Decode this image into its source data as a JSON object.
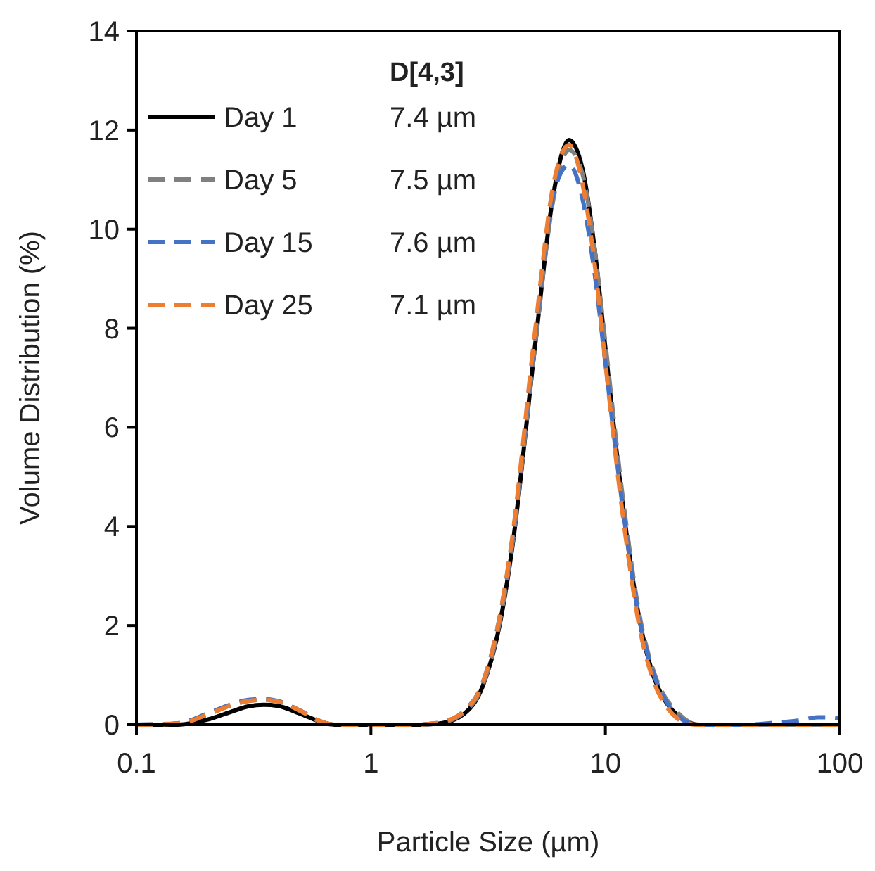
{
  "chart_data": {
    "type": "line",
    "xlabel": "Particle Size (µm)",
    "ylabel": "Volume Distribution (%)",
    "log": "x",
    "xlim": [
      0.1,
      100
    ],
    "xticks": [
      0.1,
      1,
      10,
      100
    ],
    "ylim": [
      0,
      14
    ],
    "yticks": [
      0,
      2,
      4,
      6,
      8,
      10,
      12,
      14
    ],
    "grid": false,
    "legend": "top left",
    "marker": "none",
    "x": [
      0.1,
      0.15,
      0.2,
      0.25,
      0.3,
      0.35,
      0.4,
      0.5,
      0.6,
      0.7,
      0.8,
      1,
      1.3,
      1.6,
      1.8,
      2,
      2.5,
      3,
      3.5,
      4,
      5,
      6,
      7,
      8,
      9,
      10,
      12,
      14,
      16,
      18,
      20,
      22,
      25,
      30,
      40,
      50,
      60,
      70,
      80,
      90,
      100
    ],
    "annotations": [
      "D[4,3]",
      "7.4 µm",
      "7.5 µm",
      "7.6 µm",
      "7.1 µm"
    ],
    "series": [
      {
        "name": "Day 1",
        "color": "#000000",
        "line_style": "solid",
        "values": [
          0,
          0,
          0.1,
          0.25,
          0.37,
          0.4,
          0.38,
          0.22,
          0.07,
          0,
          0,
          0,
          0,
          0,
          0.01,
          0.03,
          0.22,
          0.78,
          1.9,
          3.55,
          7.6,
          10.7,
          11.8,
          11.2,
          9.6,
          7.6,
          4.25,
          2.1,
          1.0,
          0.48,
          0.22,
          0.08,
          0,
          0,
          0,
          0,
          0,
          0,
          0,
          0,
          0
        ]
      },
      {
        "name": "Day 5",
        "color": "#808080",
        "line_style": "dashed",
        "values": [
          0,
          0.02,
          0.2,
          0.38,
          0.48,
          0.5,
          0.47,
          0.28,
          0.08,
          0,
          0,
          0,
          0,
          0,
          0.01,
          0.04,
          0.25,
          0.8,
          1.95,
          3.6,
          7.6,
          10.6,
          11.6,
          11.1,
          9.6,
          7.7,
          4.4,
          2.2,
          1.1,
          0.55,
          0.28,
          0.1,
          0,
          0,
          0,
          0,
          0,
          0,
          0,
          0,
          0
        ]
      },
      {
        "name": "Day 15",
        "color": "#4472c4",
        "line_style": "dashed",
        "values": [
          0,
          0.03,
          0.22,
          0.4,
          0.5,
          0.52,
          0.48,
          0.28,
          0.08,
          0,
          0,
          0,
          0,
          0,
          0.02,
          0.05,
          0.28,
          0.85,
          2.05,
          3.7,
          7.8,
          10.7,
          11.3,
          10.6,
          9.1,
          7.3,
          4.2,
          2.1,
          1.05,
          0.5,
          0.22,
          0.06,
          0,
          0,
          0,
          0.03,
          0.06,
          0.1,
          0.15,
          0.15,
          0.13
        ]
      },
      {
        "name": "Day 25",
        "color": "#ed7d31",
        "line_style": "dashed",
        "values": [
          0,
          0.02,
          0.2,
          0.38,
          0.48,
          0.5,
          0.47,
          0.28,
          0.08,
          0,
          0,
          0,
          0,
          0,
          0.02,
          0.05,
          0.28,
          0.85,
          2.05,
          3.75,
          7.9,
          10.9,
          11.7,
          10.9,
          9.3,
          7.3,
          4.05,
          1.95,
          0.9,
          0.4,
          0.15,
          0.03,
          0,
          0,
          0,
          0,
          0,
          0,
          0,
          0,
          0
        ]
      }
    ]
  }
}
